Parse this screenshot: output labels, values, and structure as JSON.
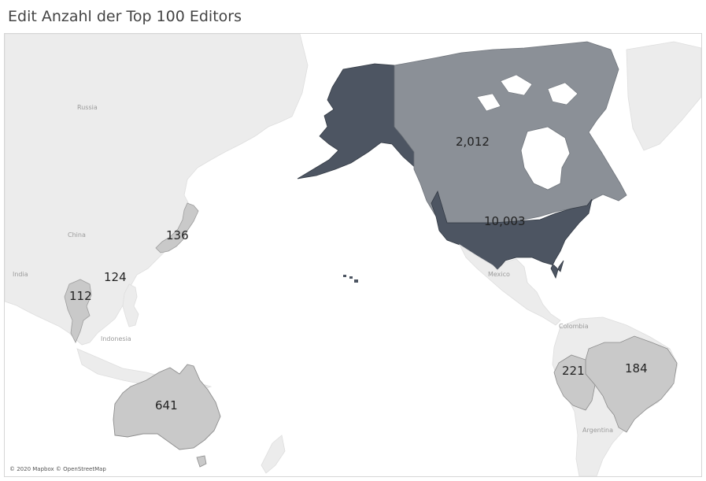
{
  "title": "Edit Anzahl der Top 100 Editors",
  "attribution": "© 2020 Mapbox © OpenStreetMap",
  "colors": {
    "usa_alaska": "#4d5562",
    "canada": "#8b9097",
    "light_country": "#c9c9c9",
    "land": "#ececec",
    "water": "#ffffff"
  },
  "map_labels": {
    "russia": "Russia",
    "china": "China",
    "india": "India",
    "indonesia": "Indonesia",
    "mexico": "Mexico",
    "colombia": "Colombia",
    "argentina": "Argentina"
  },
  "regions": [
    {
      "name": "United States",
      "value": "10,003"
    },
    {
      "name": "Canada",
      "value": "2,012"
    },
    {
      "name": "Australia",
      "value": "641"
    },
    {
      "name": "Peru",
      "value": "221"
    },
    {
      "name": "Brazil",
      "value": "184"
    },
    {
      "name": "Japan",
      "value": "136"
    },
    {
      "name": "Philippines",
      "value": "124"
    },
    {
      "name": "Thailand",
      "value": "112"
    }
  ]
}
